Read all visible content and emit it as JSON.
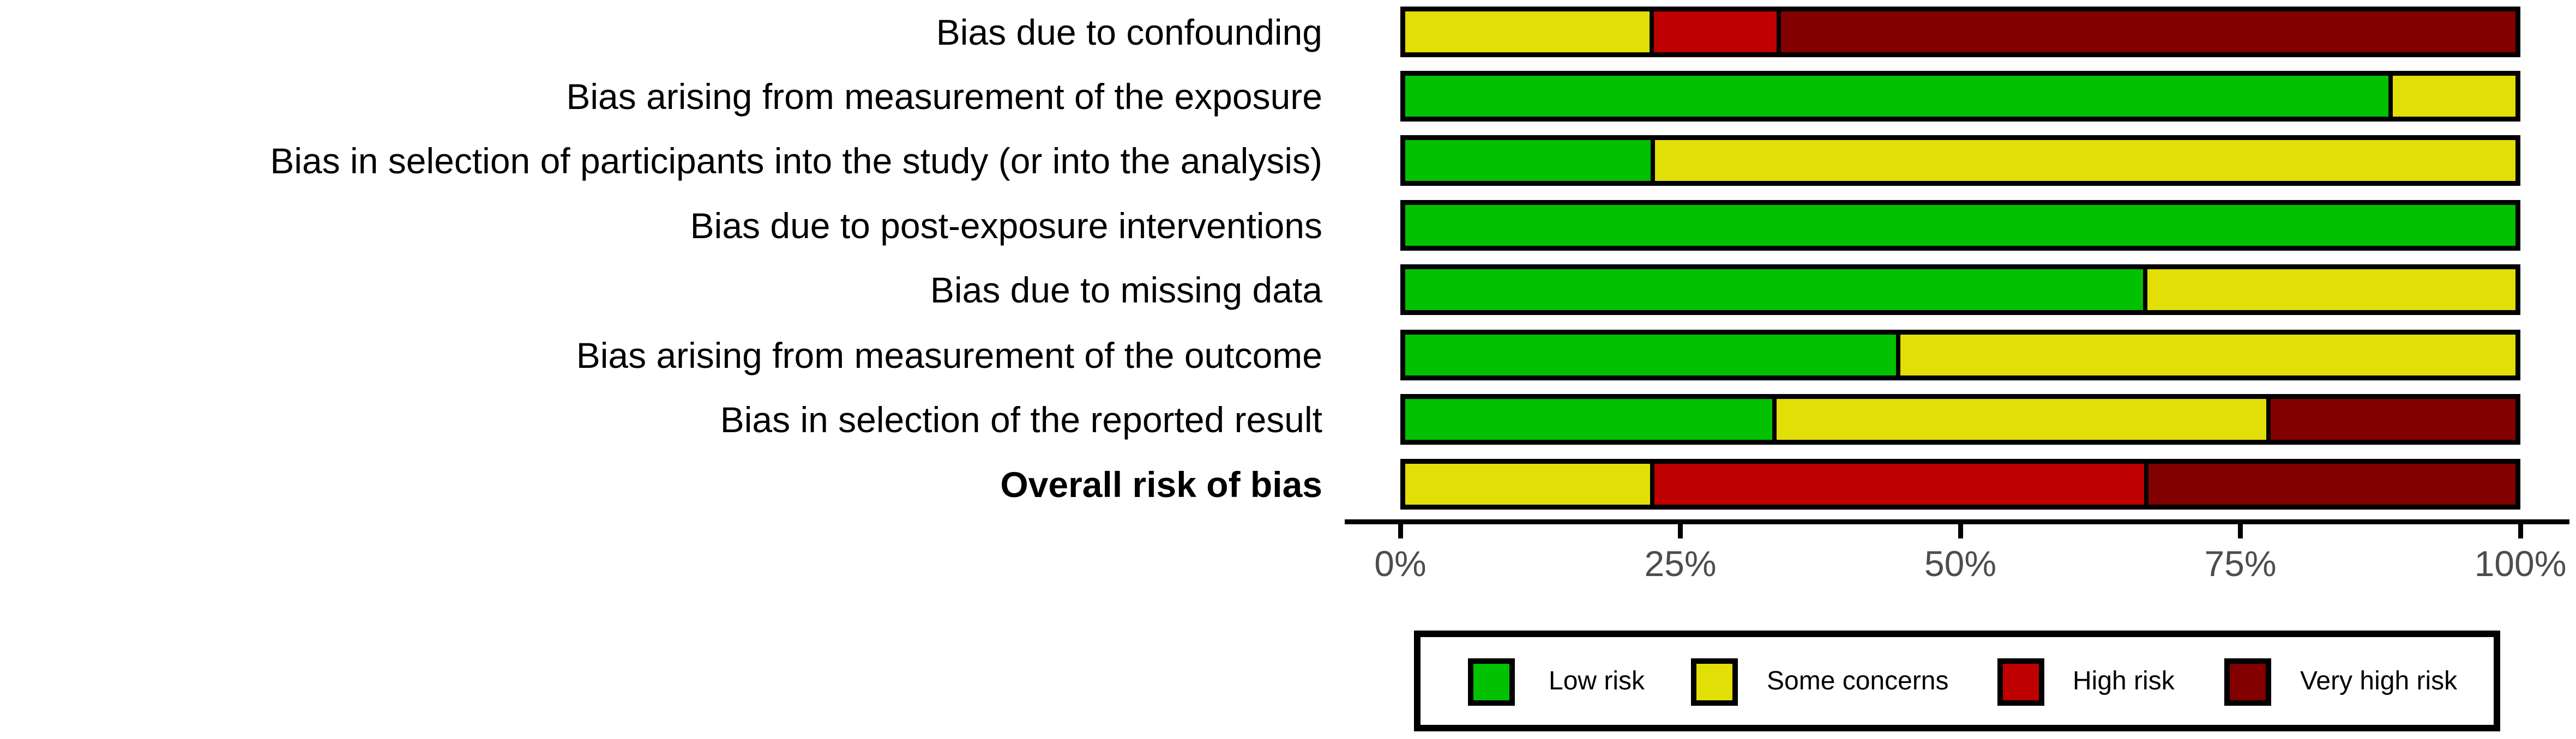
{
  "figure": {
    "background": "#FFFFFF",
    "bar_border_color": "#000000",
    "axis_color": "#000000",
    "axis_text_color": "#4D4D4D"
  },
  "chart_data": {
    "type": "bar",
    "orientation": "horizontal",
    "stacked": true,
    "units": "percent of studies",
    "title": "",
    "xlabel": "",
    "ylabel": "",
    "x_axis": {
      "range": [
        0,
        100
      ],
      "tick_labels": [
        "0%",
        "25%",
        "50%",
        "75%",
        "100%"
      ]
    },
    "categories": [
      "Bias due to confounding",
      "Bias arising from measurement of the exposure",
      "Bias in selection of participants into the study (or into the analysis)",
      "Bias due to post-exposure interventions",
      "Bias due to missing data",
      "Bias arising from measurement of the outcome",
      "Bias in selection of the reported result",
      "Overall risk of bias"
    ],
    "bold_category": "Overall risk of bias",
    "series": [
      {
        "name": "Low risk",
        "color": "#02C100",
        "values": [
          0,
          88.9,
          22.2,
          100,
          66.7,
          44.4,
          33.3,
          0
        ]
      },
      {
        "name": "Some concerns",
        "color": "#E2DF07",
        "values": [
          22.2,
          11.1,
          77.8,
          0,
          33.3,
          55.6,
          44.4,
          22.2
        ]
      },
      {
        "name": "High risk",
        "color": "#BF0000",
        "values": [
          11.1,
          0,
          0,
          0,
          0,
          0,
          0,
          44.4
        ]
      },
      {
        "name": "Very high risk",
        "color": "#820000",
        "values": [
          66.7,
          0,
          0,
          0,
          0,
          0,
          22.2,
          33.3
        ]
      }
    ],
    "legend": {
      "position": "bottom",
      "entries": [
        "Low risk",
        "Some concerns",
        "High risk",
        "Very high risk"
      ]
    }
  }
}
